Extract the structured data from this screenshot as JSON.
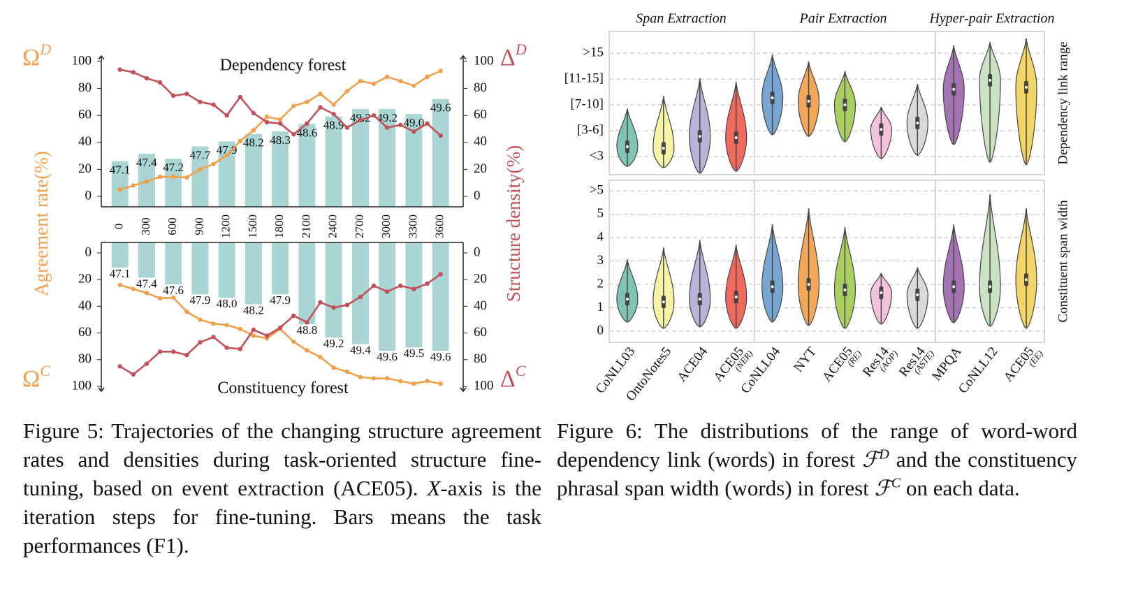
{
  "chart_data": [
    {
      "type": "combo",
      "title": "Dependency forest",
      "ylabel": "Agreement rate(%)",
      "y2label": "Structure density(%)",
      "y_symbol": {
        "text": "Ω",
        "sup": "D"
      },
      "y2_symbol": {
        "text": "Δ",
        "sup": "D"
      },
      "xlim": [
        -170,
        3830
      ],
      "xticks": [
        0,
        300,
        600,
        900,
        1200,
        1500,
        1800,
        2100,
        2400,
        2700,
        3000,
        3300,
        3600
      ],
      "ylim": [
        0,
        100
      ],
      "yticks": [
        0,
        20,
        40,
        60,
        80,
        100
      ],
      "y2lim": [
        0,
        100
      ],
      "y2ticks": [
        0,
        20,
        40,
        60,
        80,
        100
      ],
      "inverted": false,
      "bars": {
        "color": "#a9d6d5",
        "ylim": [
          45.27,
          51.11
        ],
        "x": [
          0,
          300,
          600,
          900,
          1200,
          1500,
          1800,
          2100,
          2400,
          2700,
          3000,
          3300,
          3600
        ],
        "values": [
          47.1,
          47.4,
          47.2,
          47.7,
          47.9,
          48.2,
          48.3,
          48.6,
          48.9,
          49.2,
          49.2,
          49.0,
          49.6
        ],
        "value_labels": [
          "47.1",
          "47.4",
          "47.2",
          "47.7",
          "47.9",
          "48.2",
          "48.3",
          "48.6",
          "48.9",
          "49.2",
          "49.2",
          "49.0",
          "49.6"
        ]
      },
      "x": [
        0,
        150,
        300,
        450,
        600,
        750,
        900,
        1050,
        1200,
        1350,
        1500,
        1650,
        1800,
        1950,
        2100,
        2250,
        2400,
        2550,
        2700,
        2850,
        3000,
        3150,
        3300,
        3450,
        3600
      ],
      "series": [
        {
          "color": "#f0a04b",
          "values": [
            5,
            8,
            11,
            14.5,
            14.5,
            14,
            20,
            24,
            30.5,
            41,
            49,
            59,
            57,
            67,
            70,
            76,
            68,
            78,
            85.5,
            83.5,
            88.6,
            85.5,
            82,
            88.6,
            93
          ]
        },
        {
          "color": "#c0505a",
          "axis": "y2",
          "values": [
            94,
            92,
            87.6,
            84.5,
            74.6,
            76,
            70,
            68,
            60,
            73.6,
            61.7,
            55,
            54,
            46,
            54,
            66,
            61,
            51,
            56.5,
            60,
            51,
            53,
            48,
            54,
            45
          ]
        }
      ]
    },
    {
      "type": "combo",
      "title": "Constituency forest",
      "y_symbol": {
        "text": "Ω",
        "sup": "C"
      },
      "y2_symbol": {
        "text": "Δ",
        "sup": "C"
      },
      "xlim": [
        -170,
        3830
      ],
      "ylim": [
        0,
        100
      ],
      "yticks": [
        0,
        20,
        40,
        60,
        80,
        100
      ],
      "y2lim": [
        0,
        100
      ],
      "y2ticks": [
        0,
        20,
        40,
        60,
        80,
        100
      ],
      "inverted": true,
      "bars": {
        "color": "#a9d6d5",
        "ylim": [
          46.34,
          50.67
        ],
        "x": [
          0,
          300,
          600,
          900,
          1200,
          1500,
          1800,
          2100,
          2400,
          2700,
          3000,
          3300,
          3600
        ],
        "values": [
          47.1,
          47.4,
          47.6,
          47.9,
          48.0,
          48.2,
          47.9,
          48.8,
          49.2,
          49.4,
          49.6,
          49.5,
          49.6
        ],
        "value_labels": [
          "47.1",
          "47.4",
          "47.6",
          "47.9",
          "48.0",
          "48.2",
          "47.9",
          "48.8",
          "49.2",
          "49.4",
          "49.6",
          "49.5",
          "49.6"
        ]
      },
      "x": [
        0,
        150,
        300,
        450,
        600,
        750,
        900,
        1050,
        1200,
        1350,
        1500,
        1650,
        1800,
        1950,
        2100,
        2250,
        2400,
        2550,
        2700,
        2850,
        3000,
        3150,
        3300,
        3450,
        3600
      ],
      "series": [
        {
          "color": "#f0a04b",
          "values": [
            24,
            27,
            30,
            34,
            33.5,
            44,
            50,
            53,
            54,
            57,
            62,
            64,
            57,
            66.5,
            73,
            78,
            86,
            89,
            93,
            94,
            94,
            96,
            98,
            96,
            98
          ]
        },
        {
          "color": "#c0505a",
          "axis": "y2",
          "values": [
            85,
            91,
            83,
            74,
            74,
            76.5,
            67,
            63,
            71,
            72,
            57.6,
            62,
            56,
            47,
            52,
            37,
            41,
            39,
            33,
            24.6,
            29,
            24.6,
            27,
            23,
            16
          ]
        }
      ]
    },
    {
      "type": "violin",
      "group_titles": [
        "Span Extraction",
        "Pair Extraction",
        "Hyper-pair Extraction"
      ],
      "ylabel": "Dependency link range",
      "grid": true,
      "ylim": [
        -0.7,
        4.84
      ],
      "yticks": [
        {
          "value": 0,
          "label": "<3"
        },
        {
          "value": 1,
          "label": "[3-6]"
        },
        {
          "value": 2,
          "label": "[7-10]"
        },
        {
          "value": 3,
          "label": "[11-15]"
        },
        {
          "value": 4,
          "label": ">15"
        }
      ],
      "colors": [
        "#7fc4b4",
        "#f6f3a6",
        "#b9b3da",
        "#f0695c",
        "#78a6d2",
        "#f2a65a",
        "#a9cf62",
        "#f5c2de",
        "#d9d9d9",
        "#a473b4",
        "#c9e3c2",
        "#f2d565"
      ],
      "min": [
        -0.38,
        -0.43,
        -0.65,
        -0.57,
        0.84,
        0.78,
        0.57,
        -0.08,
        0.05,
        0.46,
        -0.22,
        -0.32
      ],
      "median": [
        0.38,
        0.32,
        0.78,
        0.73,
        2.27,
        2.14,
        2.0,
        1.05,
        1.3,
        2.6,
        2.95,
        2.68
      ],
      "max": [
        1.86,
        2.35,
        3.03,
        2.9,
        3.95,
        3.68,
        3.3,
        1.92,
        2.81,
        4.3,
        4.43,
        4.57
      ]
    },
    {
      "type": "violin",
      "ylabel": "Constituent span width",
      "grid": true,
      "ylim": [
        -0.48,
        6.45
      ],
      "yticks": [
        0,
        1,
        2,
        3,
        4,
        5,
        {
          "value": 6,
          "label": ">5"
        }
      ],
      "categories": [
        {
          "name": "CoNLL03"
        },
        {
          "name": "OntoNotes5"
        },
        {
          "name": "ACE04"
        },
        {
          "name": "ACE05",
          "sub": "(NER)"
        },
        {
          "name": "CoNLL04"
        },
        {
          "name": "NYT"
        },
        {
          "name": "ACE05",
          "sub": "(RE)"
        },
        {
          "name": "Res14",
          "sub": "(AOP)"
        },
        {
          "name": "Res14",
          "sub": "(ASTE)"
        },
        {
          "name": "MPQA"
        },
        {
          "name": "CoNLL12"
        },
        {
          "name": "ACE05",
          "sub": "(EE)"
        }
      ],
      "colors": [
        "#7fc4b4",
        "#f6f3a6",
        "#b9b3da",
        "#f0695c",
        "#78a6d2",
        "#f2a65a",
        "#a9cf62",
        "#f5c2de",
        "#d9d9d9",
        "#a473b4",
        "#c9e3c2",
        "#f2d565"
      ],
      "min": [
        0.39,
        0.12,
        0.18,
        0.12,
        0.39,
        0.24,
        0.12,
        0.3,
        0.12,
        0.36,
        0.21,
        0.12
      ],
      "median": [
        1.37,
        1.25,
        1.37,
        1.46,
        1.9,
        2.0,
        1.76,
        1.64,
        1.55,
        1.9,
        1.9,
        2.2
      ],
      "max": [
        3.07,
        3.58,
        3.9,
        3.7,
        4.57,
        5.25,
        4.45,
        2.48,
        2.72,
        4.57,
        5.85,
        5.25
      ]
    }
  ],
  "captions": [
    [
      {
        "text": "Figure 5:  Trajectories of the changing structure agreement rates and densities during task-oriented structure fine-tuning, based on event extraction (ACE05). "
      },
      {
        "text": "X",
        "italic": true
      },
      {
        "text": "-axis is the iteration steps for fine-tuning. Bars means the task performances (F1)."
      }
    ],
    [
      {
        "text": "Figure 6:  The distributions of the range of word-word dependency link (words) in forest "
      },
      {
        "text": "ℱ",
        "sup": "D",
        "italic": true
      },
      {
        "text": " and the constituency phrasal span width (words) in forest "
      },
      {
        "text": "ℱ",
        "sup": "C",
        "italic": true
      },
      {
        "text": " on each data."
      }
    ]
  ]
}
